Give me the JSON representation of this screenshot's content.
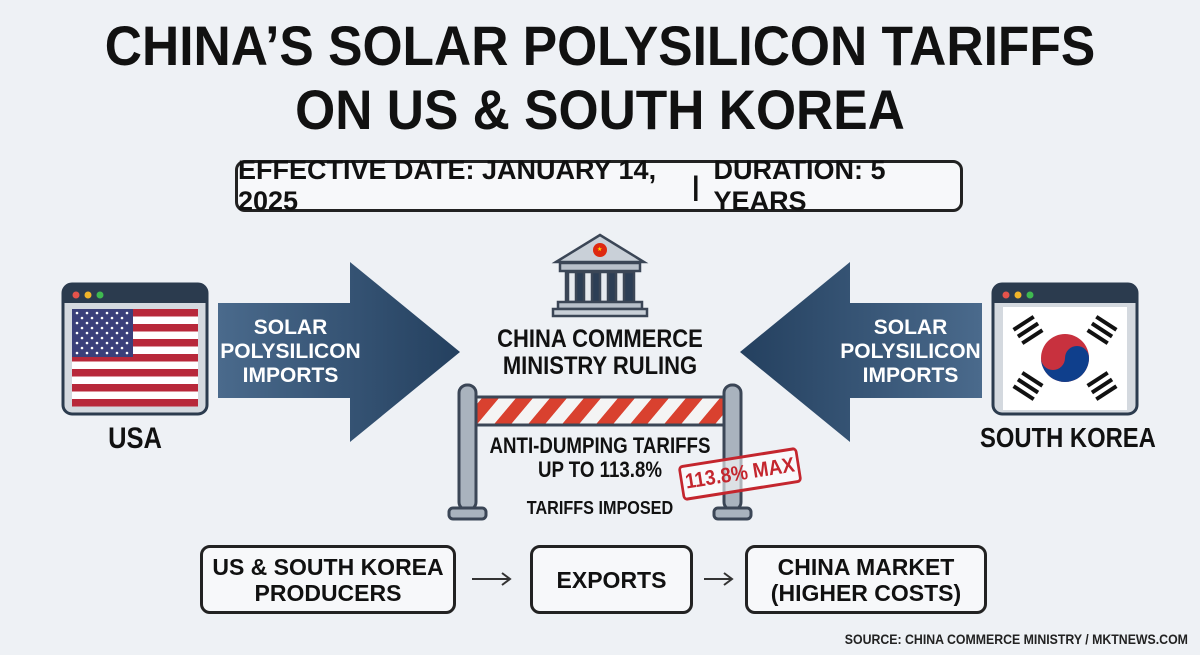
{
  "title": {
    "line1": "CHINA’S SOLAR POLYSILICON TARIFFS",
    "line2": "ON US & SOUTH KOREA"
  },
  "effective": {
    "date_label": "EFFECTIVE DATE: JANUARY 14, 2025",
    "separator": "|",
    "duration_label": "DURATION: 5 YEARS"
  },
  "left": {
    "country": "USA",
    "flag_icon": "us-flag-icon",
    "arrow_text": [
      "SOLAR",
      "POLYSILICON",
      "IMPORTS"
    ]
  },
  "right": {
    "country": "SOUTH KOREA",
    "flag_icon": "south-korea-flag-icon",
    "arrow_text": [
      "SOLAR",
      "POLYSILICON",
      "IMPORTS"
    ]
  },
  "center": {
    "ruling": [
      "CHINA COMMERCE",
      "MINISTRY RULING"
    ],
    "tariff": [
      "ANTI-DUMPING TARIFFS",
      "UP TO 113.8%"
    ],
    "stamp": "113.8% MAX",
    "imposed": "TARIFFS IMPOSED"
  },
  "flow": {
    "steps": [
      [
        "US & SOUTH KOREA",
        "PRODUCERS"
      ],
      [
        "EXPORTS"
      ],
      [
        "CHINA MARKET",
        "(HIGHER COSTS)"
      ]
    ],
    "arrow": "→"
  },
  "source": "SOURCE: CHINA COMMERCE MINISTRY / MKTNEWS.COM",
  "colors": {
    "arrow": "#2f4d70",
    "barrier_red": "#d9412f",
    "stamp": "#c4262e",
    "background": "#eef1f5"
  }
}
